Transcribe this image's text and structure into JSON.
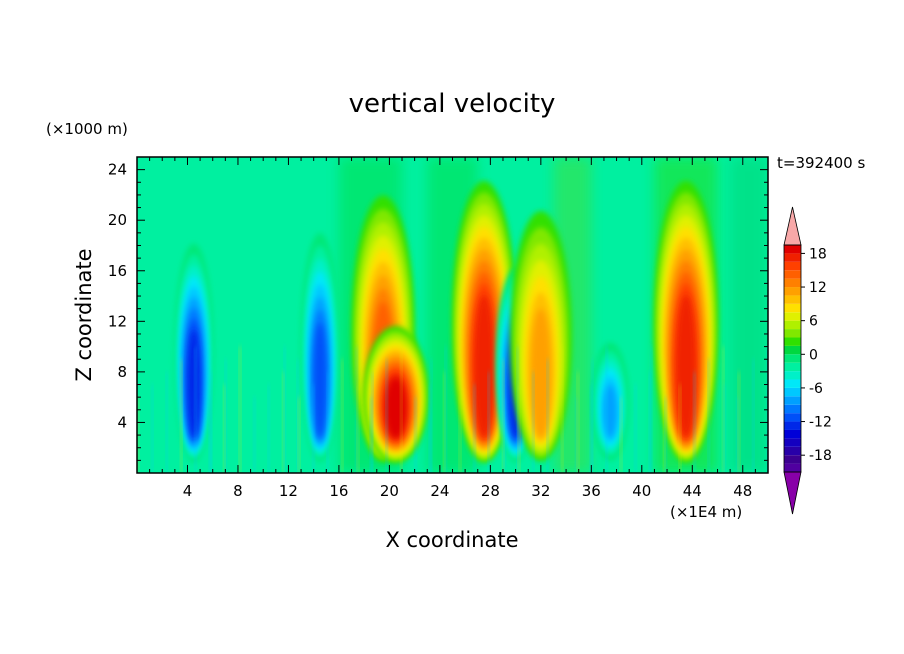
{
  "chart_data": {
    "type": "heatmap",
    "title": "vertical velocity",
    "time_label": "t=392400 s",
    "xlabel": "X coordinate",
    "ylabel": "Z coordinate",
    "x_unit": "(×1E4 m)",
    "y_unit": "(×1000 m)",
    "xlim": [
      0,
      50
    ],
    "ylim": [
      0,
      25
    ],
    "x_ticks": [
      4,
      8,
      12,
      16,
      20,
      24,
      28,
      32,
      36,
      40,
      44,
      48
    ],
    "y_ticks": [
      4,
      8,
      12,
      16,
      20,
      24
    ],
    "colorbar": {
      "levels": [
        -21,
        -19.5,
        -18,
        -16.5,
        -15,
        -13.5,
        -12,
        -10.5,
        -9,
        -7.5,
        -6,
        -4.5,
        -3,
        -1.5,
        0,
        1.5,
        3,
        4.5,
        6,
        7.5,
        9,
        10.5,
        12,
        13.5,
        15,
        16.5,
        18,
        19.5,
        21
      ],
      "tick_labels": [
        "18",
        "12",
        "6",
        "0",
        "-6",
        "-12",
        "-18"
      ],
      "tick_values": [
        18,
        12,
        6,
        0,
        -6,
        -12,
        -18
      ],
      "colors": [
        "#5000a0",
        "#3c0090",
        "#2800a8",
        "#1400c0",
        "#0000d8",
        "#0028e8",
        "#0050f8",
        "#0078ff",
        "#00a0ff",
        "#00c8ff",
        "#00e8f8",
        "#00f0c8",
        "#00f0a0",
        "#00e878",
        "#00d840",
        "#30e000",
        "#80e800",
        "#b0f000",
        "#e0f000",
        "#ffe000",
        "#ffc000",
        "#ffa000",
        "#ff8000",
        "#ff6000",
        "#ff4000",
        "#f02000",
        "#e00000",
        "#f8a0a0"
      ],
      "under_color": "#8800a8",
      "over_color": "#f8a8a8"
    },
    "cells": [
      {
        "x": 4.5,
        "z_top": 19,
        "w": -13,
        "note": "downdraft"
      },
      {
        "x": 14.5,
        "z_top": 20,
        "w": -12
      },
      {
        "x": 19.5,
        "z_top": 23,
        "w": 14
      },
      {
        "x": 20.5,
        "z_top": 12,
        "w": 18
      },
      {
        "x": 27.5,
        "z_top": 24,
        "w": 16
      },
      {
        "x": 30.0,
        "z_top": 17,
        "w": -13
      },
      {
        "x": 32.0,
        "z_top": 22,
        "w": 10
      },
      {
        "x": 37.5,
        "z_top": 11,
        "w": -9
      },
      {
        "x": 43.5,
        "z_top": 24,
        "w": 17
      }
    ]
  }
}
